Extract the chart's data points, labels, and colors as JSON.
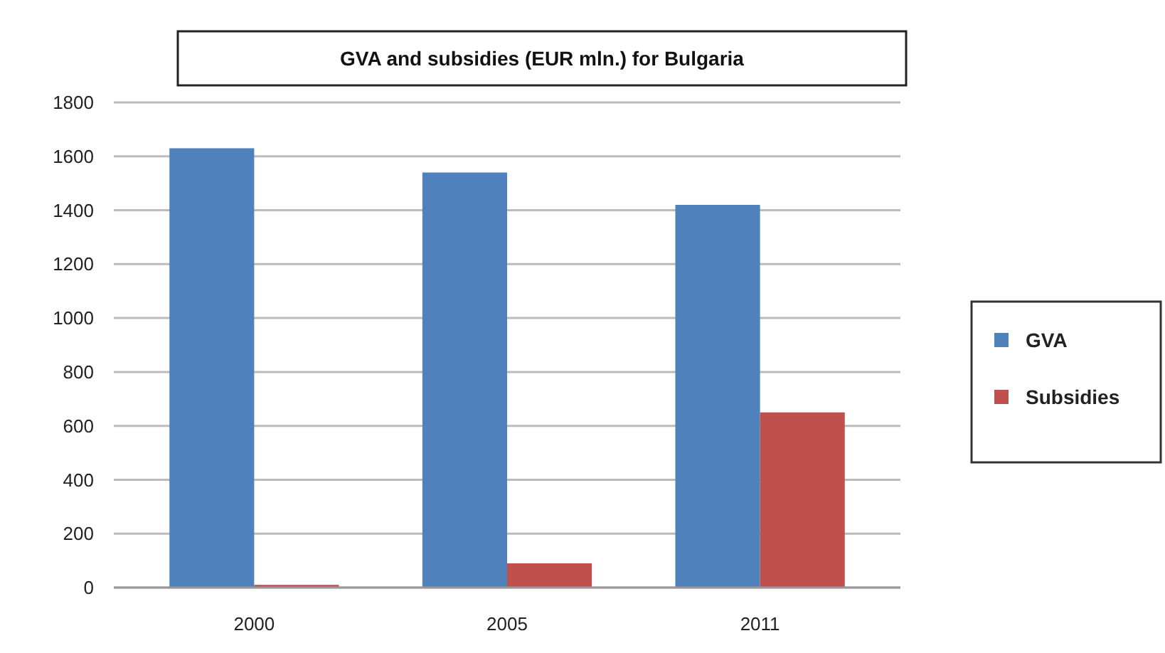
{
  "chart_data": {
    "type": "bar",
    "title": "GVA and subsidies (EUR mln.) for Bulgaria",
    "categories": [
      "2000",
      "2005",
      "2011"
    ],
    "series": [
      {
        "name": "GVA",
        "color": "#4f81bd",
        "values": [
          1630,
          1540,
          1420
        ]
      },
      {
        "name": "Subsidies",
        "color": "#c0504d",
        "values": [
          10,
          90,
          650
        ]
      }
    ],
    "ylim": [
      0,
      1800
    ],
    "yticks": [
      0,
      200,
      400,
      600,
      800,
      1000,
      1200,
      1400,
      1600,
      1800
    ],
    "grid": "y",
    "legend": "right"
  }
}
